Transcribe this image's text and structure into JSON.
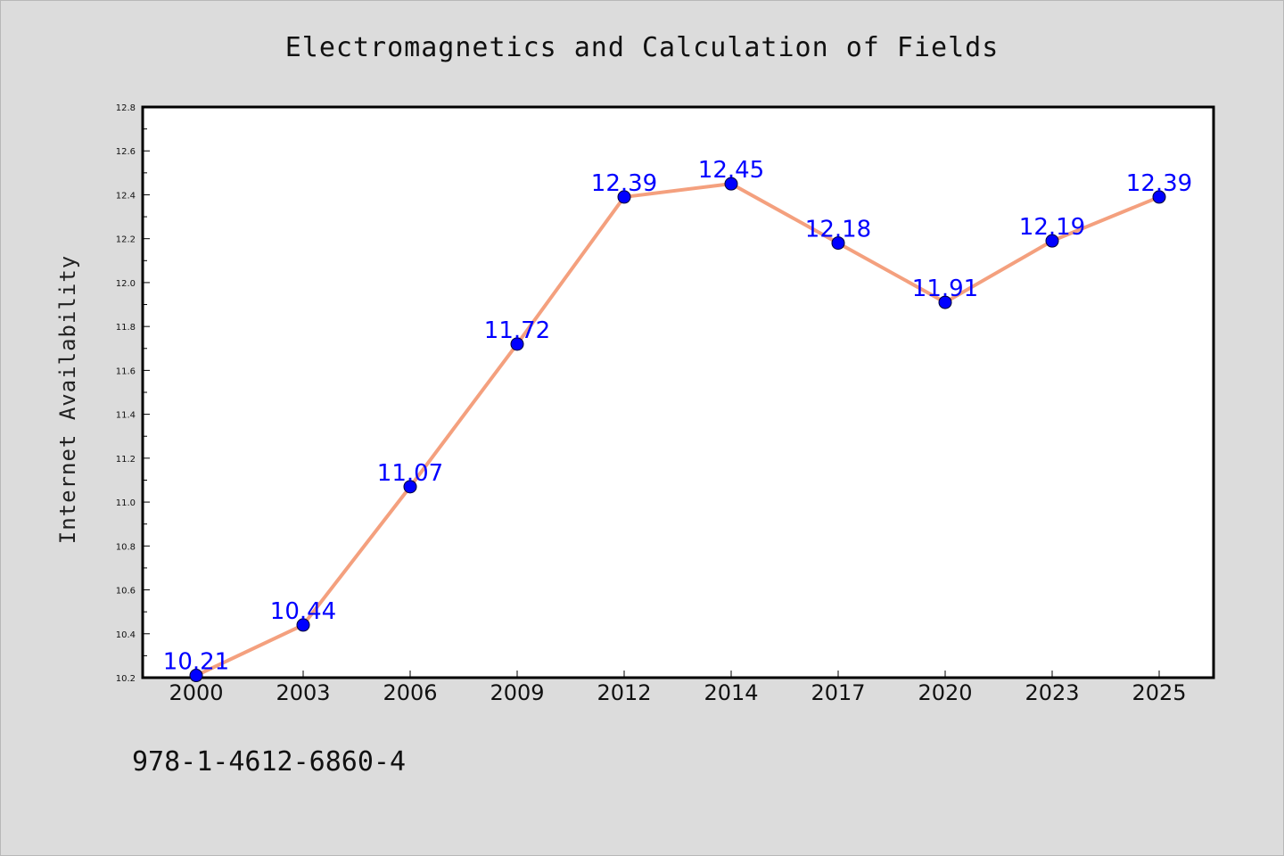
{
  "chart_data": {
    "type": "line",
    "title": "Electromagnetics and Calculation of Fields",
    "ylabel": "Internet Availability",
    "xlabel": "",
    "categories": [
      "2000",
      "2003",
      "2006",
      "2009",
      "2012",
      "2014",
      "2017",
      "2020",
      "2023",
      "2025"
    ],
    "series": [
      {
        "values": [
          10.21,
          10.44,
          11.07,
          11.72,
          12.39,
          12.45,
          12.18,
          11.91,
          12.19,
          12.39
        ],
        "labels": [
          "10.21",
          "10.44",
          "11.07",
          "11.72",
          "12.39",
          "12.45",
          "12.18",
          "11.91",
          "12.19",
          "12.39"
        ],
        "line_color": "#f4a07e",
        "marker_color": "#0000ff"
      }
    ],
    "ylim": [
      10.2,
      12.8
    ],
    "yticks": [
      "10.2",
      "10.4",
      "10.6",
      "10.8",
      "11.0",
      "11.2",
      "11.4",
      "11.6",
      "11.8",
      "12.0",
      "12.2",
      "12.4",
      "12.6",
      "12.8"
    ],
    "grid": false,
    "legend": "none",
    "data_label_color": "#0000ff"
  },
  "footer": {
    "isbn": "978-1-4612-6860-4"
  }
}
